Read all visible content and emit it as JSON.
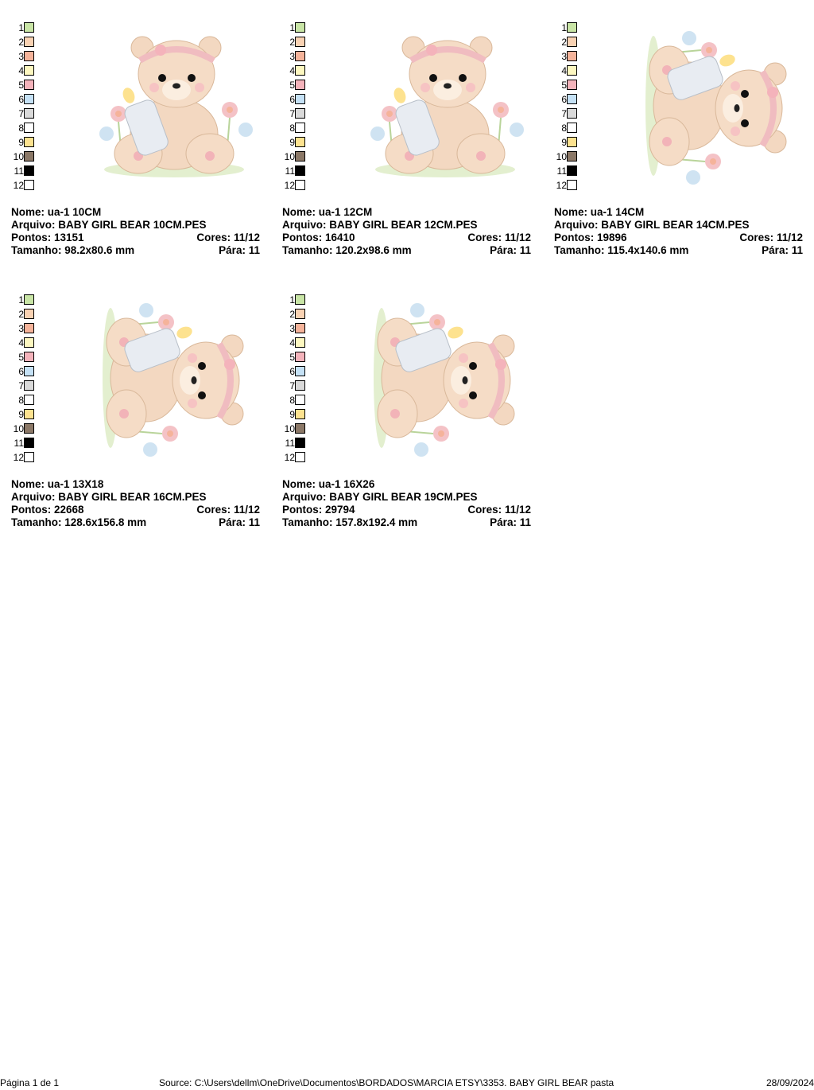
{
  "palette_colors": [
    "#c9e5a6",
    "#f9d2b3",
    "#f5b39a",
    "#fdf7c0",
    "#f4b3bb",
    "#c5e1f5",
    "#d9d9d9",
    "#ffffff",
    "#fde28f",
    "#8b7867",
    "#000000",
    "#ffffff"
  ],
  "palette_numbers": [
    "1",
    "2",
    "3",
    "4",
    "5",
    "6",
    "7",
    "8",
    "9",
    "10",
    "11",
    "12"
  ],
  "labels": {
    "nome": "Nome:",
    "arquivo": "Arquivo:",
    "pontos": "Pontos:",
    "cores": "Cores:",
    "tamanho": "Tamanho:",
    "para": "Pára:"
  },
  "designs": [
    {
      "nome": "ua-1 10CM",
      "arquivo": "BABY GIRL BEAR 10CM.PES",
      "pontos": "13151",
      "cores": "11/12",
      "tamanho": "98.2x80.6 mm",
      "para": "11",
      "orientation": "upright"
    },
    {
      "nome": "ua-1 12CM",
      "arquivo": "BABY GIRL BEAR 12CM.PES",
      "pontos": "16410",
      "cores": "11/12",
      "tamanho": "120.2x98.6 mm",
      "para": "11",
      "orientation": "upright"
    },
    {
      "nome": "ua-1 14CM",
      "arquivo": "BABY GIRL BEAR 14CM.PES",
      "pontos": "19896",
      "cores": "11/12",
      "tamanho": "115.4x140.6 mm",
      "para": "11",
      "orientation": "rotated"
    },
    {
      "nome": "ua-1 13X18",
      "arquivo": "BABY GIRL BEAR 16CM.PES",
      "pontos": "22668",
      "cores": "11/12",
      "tamanho": "128.6x156.8 mm",
      "para": "11",
      "orientation": "rotated"
    },
    {
      "nome": "ua-1 16X26",
      "arquivo": "BABY GIRL BEAR 19CM.PES",
      "pontos": "29794",
      "cores": "11/12",
      "tamanho": "157.8x192.4 mm",
      "para": "11",
      "orientation": "rotated"
    }
  ],
  "footer": {
    "page": "Página 1 de 1",
    "source": "Source: C:\\Users\\dellm\\OneDrive\\Documentos\\BORDADOS\\MARCIA ETSY\\3353. BABY GIRL BEAR pasta",
    "date": "28/09/2024"
  }
}
